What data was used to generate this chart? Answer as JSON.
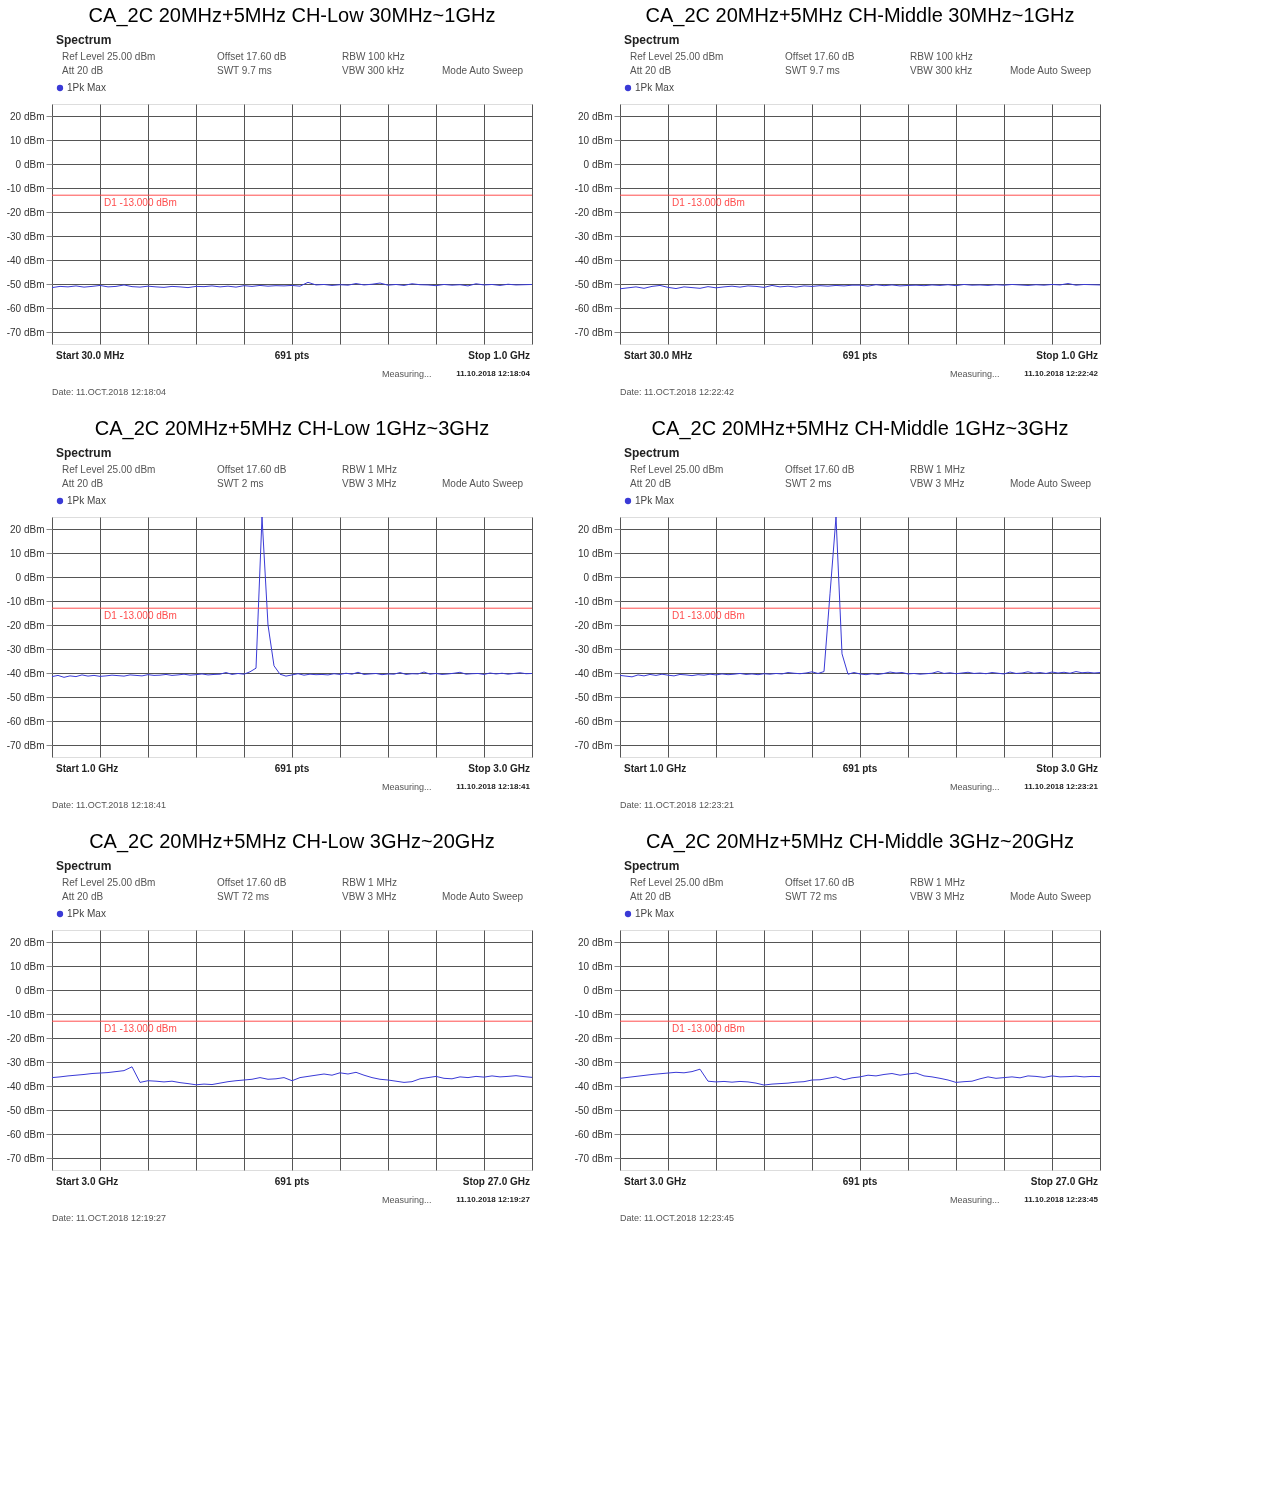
{
  "chart_data": [
    {
      "type": "line",
      "title": "CA_2C 20MHz+5MHz CH-Low 30MHz~1GHz",
      "categories": [
        null,
        null,
        null,
        null,
        null,
        null,
        null,
        null,
        null,
        null,
        null,
        null,
        null,
        null,
        null,
        null,
        null,
        null,
        null,
        null,
        null,
        null,
        null,
        null,
        null,
        null,
        null,
        null,
        null,
        null,
        null,
        null,
        null,
        null,
        null,
        null,
        null,
        null,
        null,
        null,
        null,
        null,
        null,
        null,
        null,
        null,
        null,
        null,
        null,
        null,
        null,
        null,
        null,
        null,
        null,
        null,
        null,
        null,
        null,
        null,
        null
      ],
      "ylim": [
        -75,
        25
      ],
      "yticks": [
        {
          "value": 20,
          "label": "20 dBm"
        },
        {
          "value": 10,
          "label": "10 dBm"
        },
        {
          "value": 0,
          "label": "0 dBm"
        },
        {
          "value": -10,
          "label": "-10 dBm"
        },
        {
          "value": -20,
          "label": "-20 dBm"
        },
        {
          "value": -30,
          "label": "-30 dBm"
        },
        {
          "value": -40,
          "label": "-40 dBm"
        },
        {
          "value": -50,
          "label": "-50 dBm"
        },
        {
          "value": -60,
          "label": "-60 dBm"
        },
        {
          "value": -70,
          "label": "-70 dBm"
        }
      ],
      "tick_labels": "y",
      "grid": true,
      "legend": "top left",
      "series": [
        {
          "name": "1Pk Max",
          "color": "#3a3ad6",
          "values": [
            -51.5,
            -51,
            -51.2,
            -50.8,
            -51.3,
            -51,
            -50.6,
            -51.2,
            -51,
            -50.4,
            -51.1,
            -51.3,
            -50.9,
            -51.2,
            -51.4,
            -51,
            -51.2,
            -51.5,
            -51,
            -51.1,
            -50.8,
            -51.2,
            -50.9,
            -51.3,
            -50.7,
            -51,
            -50.6,
            -50.9,
            -50.7,
            -50.8,
            -50.6,
            -50.9,
            -49.3,
            -50.4,
            -50.2,
            -50.6,
            -50.3,
            -50.5,
            -49.8,
            -50.4,
            -50.1,
            -49.6,
            -50.5,
            -50.2,
            -50.6,
            -49.9,
            -50.3,
            -50.4,
            -50.7,
            -50.2,
            -50.5,
            -50.3,
            -50.8,
            -49.9,
            -50.4,
            -50.2,
            -50.6,
            -50.1,
            -50.4,
            -50.3,
            -50.2
          ]
        }
      ],
      "ref_lines": [
        {
          "axis": "y",
          "value": -13,
          "label": "D1 -13.000 dBm",
          "color": "#ff4d4d"
        }
      ],
      "annotations": [
        "Spectrum",
        "Ref Level 25.00 dBm",
        "Offset 17.60 dB",
        "RBW 100 kHz",
        "Att 20 dB",
        "SWT 9.7 ms",
        "VBW 300 kHz",
        "Mode Auto Sweep",
        "Start 30.0 MHz",
        "691 pts",
        "Stop 1.0 GHz",
        "Measuring...",
        "11.10.2018 12:18:04",
        "Date: 11.OCT.2018 12:18:04"
      ]
    },
    {
      "type": "line",
      "title": "CA_2C 20MHz+5MHz CH-Middle 30MHz~1GHz",
      "categories": [
        null,
        null,
        null,
        null,
        null,
        null,
        null,
        null,
        null,
        null,
        null,
        null,
        null,
        null,
        null,
        null,
        null,
        null,
        null,
        null,
        null,
        null,
        null,
        null,
        null,
        null,
        null,
        null,
        null,
        null,
        null,
        null,
        null,
        null,
        null,
        null,
        null,
        null,
        null,
        null,
        null,
        null,
        null,
        null,
        null,
        null,
        null,
        null,
        null,
        null,
        null,
        null,
        null,
        null,
        null,
        null,
        null,
        null,
        null,
        null,
        null
      ],
      "ylim": [
        -75,
        25
      ],
      "yticks": [
        {
          "value": 20,
          "label": "20 dBm"
        },
        {
          "value": 10,
          "label": "10 dBm"
        },
        {
          "value": 0,
          "label": "0 dBm"
        },
        {
          "value": -10,
          "label": "-10 dBm"
        },
        {
          "value": -20,
          "label": "-20 dBm"
        },
        {
          "value": -30,
          "label": "-30 dBm"
        },
        {
          "value": -40,
          "label": "-40 dBm"
        },
        {
          "value": -50,
          "label": "-50 dBm"
        },
        {
          "value": -60,
          "label": "-60 dBm"
        },
        {
          "value": -70,
          "label": "-70 dBm"
        }
      ],
      "tick_labels": "y",
      "grid": true,
      "legend": "top left",
      "series": [
        {
          "name": "1Pk Max",
          "color": "#3a3ad6",
          "values": [
            -52,
            -51.6,
            -51.2,
            -51.8,
            -51,
            -50.6,
            -51.4,
            -51.9,
            -51.2,
            -51.5,
            -51.8,
            -51.1,
            -51.6,
            -51.2,
            -50.9,
            -51.3,
            -50.8,
            -51,
            -51.4,
            -50.6,
            -51.2,
            -50.9,
            -51.3,
            -50.8,
            -51,
            -50.7,
            -50.9,
            -50.6,
            -50.8,
            -50.5,
            -50.5,
            -50.9,
            -50.3,
            -50.7,
            -50.4,
            -50.8,
            -50.6,
            -50.5,
            -50.7,
            -50.4,
            -50.6,
            -50.3,
            -50.7,
            -50.2,
            -50.5,
            -50.4,
            -50.6,
            -50.3,
            -50.5,
            -50.2,
            -50.4,
            -50.6,
            -50.3,
            -50.5,
            -50.2,
            -50.4,
            -49.8,
            -50.5,
            -50.2,
            -50.3,
            -50.4
          ]
        }
      ],
      "ref_lines": [
        {
          "axis": "y",
          "value": -13,
          "label": "D1 -13.000 dBm",
          "color": "#ff4d4d"
        }
      ],
      "annotations": [
        "Spectrum",
        "Ref Level 25.00 dBm",
        "Offset 17.60 dB",
        "RBW 100 kHz",
        "Att 20 dB",
        "SWT 9.7 ms",
        "VBW 300 kHz",
        "Mode Auto Sweep",
        "Start 30.0 MHz",
        "691 pts",
        "Stop 1.0 GHz",
        "Measuring...",
        "11.10.2018 12:22:42",
        "Date: 11.OCT.2018 12:22:42"
      ]
    },
    {
      "type": "line",
      "title": "CA_2C 20MHz+5MHz CH-Low 1GHz~3GHz",
      "categories": [
        null,
        null,
        null,
        null,
        null,
        null,
        null,
        null,
        null,
        null,
        null,
        null,
        null,
        null,
        null,
        null,
        null,
        null,
        null,
        null,
        null,
        null,
        null,
        null,
        null,
        null,
        null,
        null,
        null,
        null,
        null,
        null,
        null,
        null,
        null,
        null,
        null,
        null,
        null,
        null,
        null,
        null,
        null,
        null,
        null,
        null,
        null,
        null,
        null,
        null,
        null,
        null,
        null,
        null,
        null,
        null,
        null,
        null,
        null,
        null,
        null,
        null,
        null,
        null,
        null,
        null,
        null,
        null,
        null,
        null,
        null,
        null,
        null,
        null,
        null,
        null,
        null,
        null,
        null,
        null,
        null
      ],
      "ylim": [
        -75,
        25
      ],
      "yticks": [
        {
          "value": 20,
          "label": "20 dBm"
        },
        {
          "value": 10,
          "label": "10 dBm"
        },
        {
          "value": 0,
          "label": "0 dBm"
        },
        {
          "value": -10,
          "label": "-10 dBm"
        },
        {
          "value": -20,
          "label": "-20 dBm"
        },
        {
          "value": -30,
          "label": "-30 dBm"
        },
        {
          "value": -40,
          "label": "-40 dBm"
        },
        {
          "value": -50,
          "label": "-50 dBm"
        },
        {
          "value": -60,
          "label": "-60 dBm"
        },
        {
          "value": -70,
          "label": "-70 dBm"
        }
      ],
      "tick_labels": "y",
      "grid": true,
      "legend": "top left",
      "series": [
        {
          "name": "1Pk Max",
          "color": "#3a3ad6",
          "values": [
            -41.5,
            -41,
            -41.8,
            -41.2,
            -41.5,
            -40.8,
            -41.3,
            -41,
            -41.4,
            -41.2,
            -40.9,
            -41.1,
            -41.3,
            -40.8,
            -41,
            -41.2,
            -40.7,
            -41,
            -40.9,
            -40.6,
            -41,
            -40.8,
            -40.5,
            -40.9,
            -40.7,
            -40.4,
            -40.8,
            -40.6,
            -40.5,
            -39.8,
            -40.6,
            -40.2,
            -40.5,
            -39.5,
            -38,
            25,
            -20,
            -37,
            -40.5,
            -41.3,
            -40.8,
            -40.3,
            -40.9,
            -40.5,
            -40.7,
            -40.6,
            -40.8,
            -40.3,
            -40.6,
            -40.1,
            -40.5,
            -39.7,
            -40.6,
            -40.4,
            -40.2,
            -40.7,
            -40.4,
            -40.5,
            -39.8,
            -40.6,
            -40.3,
            -40.4,
            -39.6,
            -40.5,
            -40.2,
            -40.6,
            -40.4,
            -40.1,
            -39.7,
            -40.5,
            -40.3,
            -40.2,
            -40.6,
            -40,
            -40.4,
            -40.1,
            -40.5,
            -40.2,
            -39.9,
            -40.3,
            -40.2
          ]
        }
      ],
      "ref_lines": [
        {
          "axis": "y",
          "value": -13,
          "label": "D1 -13.000 dBm",
          "color": "#ff4d4d"
        }
      ],
      "annotations": [
        "Spectrum",
        "Ref Level 25.00 dBm",
        "Offset 17.60 dB",
        "RBW 1 MHz",
        "Att 20 dB",
        "SWT 2 ms",
        "VBW 3 MHz",
        "Mode Auto Sweep",
        "Start 1.0 GHz",
        "691 pts",
        "Stop 3.0 GHz",
        "Measuring...",
        "11.10.2018 12:18:41",
        "Date: 11.OCT.2018 12:18:41"
      ]
    },
    {
      "type": "line",
      "title": "CA_2C 20MHz+5MHz CH-Middle 1GHz~3GHz",
      "categories": [
        null,
        null,
        null,
        null,
        null,
        null,
        null,
        null,
        null,
        null,
        null,
        null,
        null,
        null,
        null,
        null,
        null,
        null,
        null,
        null,
        null,
        null,
        null,
        null,
        null,
        null,
        null,
        null,
        null,
        null,
        null,
        null,
        null,
        null,
        null,
        null,
        null,
        null,
        null,
        null,
        null,
        null,
        null,
        null,
        null,
        null,
        null,
        null,
        null,
        null,
        null,
        null,
        null,
        null,
        null,
        null,
        null,
        null,
        null,
        null,
        null,
        null,
        null,
        null,
        null,
        null,
        null,
        null,
        null,
        null,
        null,
        null,
        null,
        null,
        null,
        null,
        null,
        null,
        null,
        null,
        null
      ],
      "ylim": [
        -75,
        25
      ],
      "yticks": [
        {
          "value": 20,
          "label": "20 dBm"
        },
        {
          "value": 10,
          "label": "10 dBm"
        },
        {
          "value": 0,
          "label": "0 dBm"
        },
        {
          "value": -10,
          "label": "-10 dBm"
        },
        {
          "value": -20,
          "label": "-20 dBm"
        },
        {
          "value": -30,
          "label": "-30 dBm"
        },
        {
          "value": -40,
          "label": "-40 dBm"
        },
        {
          "value": -50,
          "label": "-50 dBm"
        },
        {
          "value": -60,
          "label": "-60 dBm"
        },
        {
          "value": -70,
          "label": "-70 dBm"
        }
      ],
      "tick_labels": "y",
      "grid": true,
      "legend": "top left",
      "series": [
        {
          "name": "1Pk Max",
          "color": "#3a3ad6",
          "values": [
            -41,
            -41.3,
            -41.6,
            -40.8,
            -41.2,
            -40.6,
            -41,
            -40.5,
            -40.9,
            -41.2,
            -40.6,
            -40.8,
            -41.1,
            -40.7,
            -40.9,
            -40.5,
            -40.8,
            -40.4,
            -40.7,
            -40.5,
            -40.2,
            -40.6,
            -40.4,
            -40.7,
            -40.3,
            -40.5,
            -40.2,
            -40.4,
            -39.8,
            -40.1,
            -40.3,
            -40,
            -39.5,
            -40.2,
            -39.4,
            -7,
            25,
            -32,
            -40.5,
            -39.8,
            -40.4,
            -40.7,
            -40.3,
            -40.6,
            -40.2,
            -39.6,
            -40,
            -39.8,
            -40.4,
            -40.2,
            -40.5,
            -40.3,
            -40.1,
            -39.4,
            -40.2,
            -39.9,
            -40.3,
            -40,
            -39.7,
            -40.2,
            -40,
            -40.3,
            -39.8,
            -40.1,
            -40.4,
            -39.6,
            -40.2,
            -40,
            -39.5,
            -40.1,
            -39.8,
            -40.2,
            -39.6,
            -40,
            -39.7,
            -40.1,
            -39.4,
            -39.9,
            -39.7,
            -40,
            -39.8
          ]
        }
      ],
      "ref_lines": [
        {
          "axis": "y",
          "value": -13,
          "label": "D1 -13.000 dBm",
          "color": "#ff4d4d"
        }
      ],
      "annotations": [
        "Spectrum",
        "Ref Level 25.00 dBm",
        "Offset 17.60 dB",
        "RBW 1 MHz",
        "Att 20 dB",
        "SWT 2 ms",
        "VBW 3 MHz",
        "Mode Auto Sweep",
        "Start 1.0 GHz",
        "691 pts",
        "Stop 3.0 GHz",
        "Measuring...",
        "11.10.2018 12:23:21",
        "Date: 11.OCT.2018 12:23:21"
      ]
    },
    {
      "type": "line",
      "title": "CA_2C 20MHz+5MHz CH-Low 3GHz~20GHz",
      "categories": [
        null,
        null,
        null,
        null,
        null,
        null,
        null,
        null,
        null,
        null,
        null,
        null,
        null,
        null,
        null,
        null,
        null,
        null,
        null,
        null,
        null,
        null,
        null,
        null,
        null,
        null,
        null,
        null,
        null,
        null,
        null,
        null,
        null,
        null,
        null,
        null,
        null,
        null,
        null,
        null,
        null,
        null,
        null,
        null,
        null,
        null,
        null,
        null,
        null,
        null,
        null,
        null,
        null,
        null,
        null,
        null,
        null,
        null,
        null,
        null,
        null
      ],
      "ylim": [
        -75,
        25
      ],
      "yticks": [
        {
          "value": 20,
          "label": "20 dBm"
        },
        {
          "value": 10,
          "label": "10 dBm"
        },
        {
          "value": 0,
          "label": "0 dBm"
        },
        {
          "value": -10,
          "label": "-10 dBm"
        },
        {
          "value": -20,
          "label": "-20 dBm"
        },
        {
          "value": -30,
          "label": "-30 dBm"
        },
        {
          "value": -40,
          "label": "-40 dBm"
        },
        {
          "value": -50,
          "label": "-50 dBm"
        },
        {
          "value": -60,
          "label": "-60 dBm"
        },
        {
          "value": -70,
          "label": "-70 dBm"
        }
      ],
      "tick_labels": "y",
      "grid": true,
      "legend": "top left",
      "series": [
        {
          "name": "1Pk Max",
          "color": "#3a3ad6",
          "values": [
            -36.5,
            -36.2,
            -35.8,
            -35.5,
            -35.2,
            -34.8,
            -34.6,
            -34.4,
            -34,
            -33.6,
            -32,
            -38.5,
            -37.8,
            -38,
            -38.3,
            -38,
            -38.6,
            -39,
            -39.5,
            -39.2,
            -39.4,
            -38.8,
            -38.2,
            -37.8,
            -37.5,
            -37.2,
            -36.5,
            -37.2,
            -37,
            -36.5,
            -37.8,
            -36.5,
            -36,
            -35.5,
            -35,
            -35.5,
            -34.5,
            -35,
            -34.3,
            -35.5,
            -36.5,
            -37.2,
            -37.5,
            -38,
            -38.5,
            -38.2,
            -37,
            -36.5,
            -36,
            -36.8,
            -37,
            -36.2,
            -36.5,
            -36,
            -36.3,
            -35.8,
            -36.2,
            -36,
            -35.7,
            -36.1,
            -36.4
          ]
        }
      ],
      "ref_lines": [
        {
          "axis": "y",
          "value": -13,
          "label": "D1 -13.000 dBm",
          "color": "#ff4d4d"
        }
      ],
      "annotations": [
        "Spectrum",
        "Ref Level 25.00 dBm",
        "Offset 17.60 dB",
        "RBW 1 MHz",
        "Att 20 dB",
        "SWT 72 ms",
        "VBW 3 MHz",
        "Mode Auto Sweep",
        "Start 3.0 GHz",
        "691 pts",
        "Stop 27.0 GHz",
        "Measuring...",
        "11.10.2018 12:19:27",
        "Date: 11.OCT.2018 12:19:27"
      ]
    },
    {
      "type": "line",
      "title": "CA_2C 20MHz+5MHz CH-Middle 3GHz~20GHz",
      "categories": [
        null,
        null,
        null,
        null,
        null,
        null,
        null,
        null,
        null,
        null,
        null,
        null,
        null,
        null,
        null,
        null,
        null,
        null,
        null,
        null,
        null,
        null,
        null,
        null,
        null,
        null,
        null,
        null,
        null,
        null,
        null,
        null,
        null,
        null,
        null,
        null,
        null,
        null,
        null,
        null,
        null,
        null,
        null,
        null,
        null,
        null,
        null,
        null,
        null,
        null,
        null,
        null,
        null,
        null,
        null,
        null,
        null,
        null,
        null,
        null,
        null
      ],
      "ylim": [
        -75,
        25
      ],
      "yticks": [
        {
          "value": 20,
          "label": "20 dBm"
        },
        {
          "value": 10,
          "label": "10 dBm"
        },
        {
          "value": 0,
          "label": "0 dBm"
        },
        {
          "value": -10,
          "label": "-10 dBm"
        },
        {
          "value": -20,
          "label": "-20 dBm"
        },
        {
          "value": -30,
          "label": "-30 dBm"
        },
        {
          "value": -40,
          "label": "-40 dBm"
        },
        {
          "value": -50,
          "label": "-50 dBm"
        },
        {
          "value": -60,
          "label": "-60 dBm"
        },
        {
          "value": -70,
          "label": "-70 dBm"
        }
      ],
      "tick_labels": "y",
      "grid": true,
      "legend": "top left",
      "series": [
        {
          "name": "1Pk Max",
          "color": "#3a3ad6",
          "values": [
            -36.8,
            -36.4,
            -36,
            -35.6,
            -35.2,
            -34.9,
            -34.6,
            -34.3,
            -34.5,
            -34,
            -33,
            -38,
            -38.3,
            -38.1,
            -38.4,
            -38.1,
            -38.3,
            -38.8,
            -39.6,
            -39.2,
            -39,
            -38.8,
            -38.4,
            -38.2,
            -37.5,
            -37.4,
            -36.8,
            -36.2,
            -37.4,
            -36.6,
            -36.2,
            -35.5,
            -35.8,
            -35.2,
            -34.8,
            -35.5,
            -35,
            -34.6,
            -35.8,
            -36.2,
            -36.8,
            -37.5,
            -38.5,
            -38.2,
            -38,
            -37,
            -36.2,
            -36.8,
            -36.5,
            -36.2,
            -36.6,
            -35.8,
            -36,
            -36.4,
            -35.8,
            -36.2,
            -36.1,
            -35.9,
            -36.2,
            -36,
            -36.1
          ]
        }
      ],
      "ref_lines": [
        {
          "axis": "y",
          "value": -13,
          "label": "D1 -13.000 dBm",
          "color": "#ff4d4d"
        }
      ],
      "annotations": [
        "Spectrum",
        "Ref Level 25.00 dBm",
        "Offset 17.60 dB",
        "RBW 1 MHz",
        "Att 20 dB",
        "SWT 72 ms",
        "VBW 3 MHz",
        "Mode Auto Sweep",
        "Start 3.0 GHz",
        "691 pts",
        "Stop 27.0 GHz",
        "Measuring...",
        "11.10.2018 12:23:45",
        "Date: 11.OCT.2018 12:23:45"
      ]
    }
  ]
}
